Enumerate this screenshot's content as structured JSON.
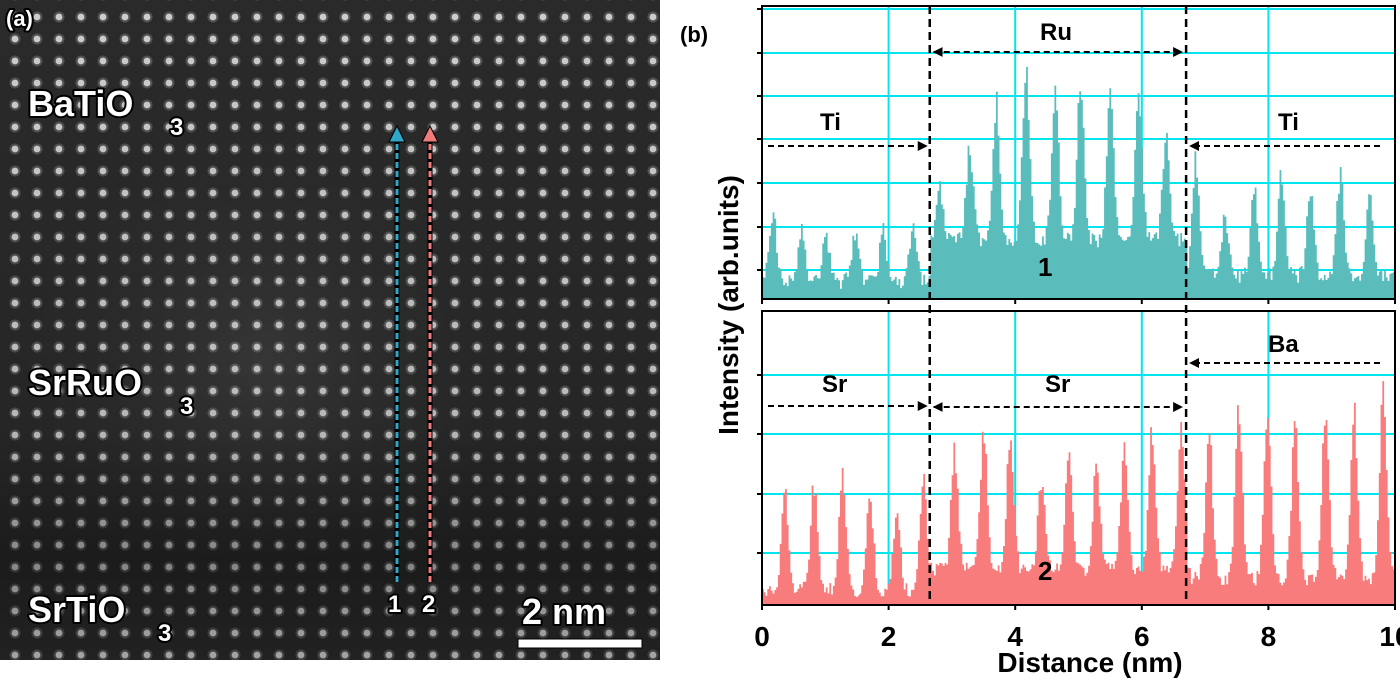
{
  "panel_a": {
    "label": "(a)",
    "layers": [
      {
        "main": "BaTiO",
        "sub": "3"
      },
      {
        "main": "SrRuO",
        "sub": "3"
      },
      {
        "main": "SrTiO",
        "sub": "3"
      }
    ],
    "line_labels": [
      "1",
      "2"
    ],
    "line_colors": [
      "#2fa8c8",
      "#f07b7b"
    ],
    "scale_bar": "2 nm"
  },
  "chart_data": {
    "type": "area",
    "panel_label": "(b)",
    "xlabel": "Distance (nm)",
    "ylabel": "Intensity (arb.units)",
    "xlim": [
      0,
      10
    ],
    "x_ticks": [
      "0",
      "2",
      "4",
      "6",
      "8",
      "10"
    ],
    "grid": true,
    "grid_color": "#00e5ee",
    "interfaces_nm": [
      2.65,
      6.7
    ],
    "series": [
      {
        "name": "1",
        "color": "#5bbcbc",
        "regions": [
          {
            "label": "Ti",
            "range": [
              0,
              2.65
            ],
            "baseline": 0.06,
            "peaks_nm": [
              0.16,
              0.62,
              1.0,
              1.46,
              1.9,
              2.37
            ],
            "heights": [
              0.33,
              0.24,
              0.23,
              0.24,
              0.24,
              0.27
            ]
          },
          {
            "label": "Ru",
            "range": [
              2.65,
              6.7
            ],
            "baseline": 0.2,
            "peaks_nm": [
              2.79,
              3.27,
              3.69,
              4.16,
              4.62,
              5.02,
              5.49,
              5.94,
              6.37
            ],
            "heights": [
              0.4,
              0.53,
              0.7,
              0.82,
              0.77,
              0.79,
              0.74,
              0.74,
              0.59
            ]
          },
          {
            "label": "Ti",
            "range": [
              6.7,
              10
            ],
            "baseline": 0.08,
            "peaks_nm": [
              6.84,
              7.3,
              7.76,
              8.19,
              8.65,
              9.12,
              9.59
            ],
            "heights": [
              0.5,
              0.3,
              0.41,
              0.45,
              0.4,
              0.44,
              0.37
            ]
          }
        ]
      },
      {
        "name": "2",
        "color": "#f87c7c",
        "regions": [
          {
            "label": "Sr",
            "range": [
              0,
              2.65
            ],
            "baseline": 0.05,
            "peaks_nm": [
              0.35,
              0.81,
              1.26,
              1.69,
              2.12,
              2.54
            ],
            "heights": [
              0.43,
              0.44,
              0.47,
              0.41,
              0.33,
              0.47
            ]
          },
          {
            "label": "Sr",
            "range": [
              2.65,
              6.7
            ],
            "baseline": 0.12,
            "peaks_nm": [
              3.03,
              3.49,
              3.91,
              4.4,
              4.83,
              5.27,
              5.71,
              6.15,
              6.61
            ],
            "heights": [
              0.56,
              0.63,
              0.64,
              0.44,
              0.54,
              0.51,
              0.57,
              0.61,
              0.64
            ]
          },
          {
            "label": "Ba",
            "range": [
              6.7,
              10
            ],
            "baseline": 0.09,
            "peaks_nm": [
              7.05,
              7.52,
              7.97,
              8.41,
              8.89,
              9.34,
              9.8
            ],
            "heights": [
              0.66,
              0.72,
              0.71,
              0.67,
              0.7,
              0.7,
              0.75
            ]
          }
        ]
      }
    ]
  }
}
